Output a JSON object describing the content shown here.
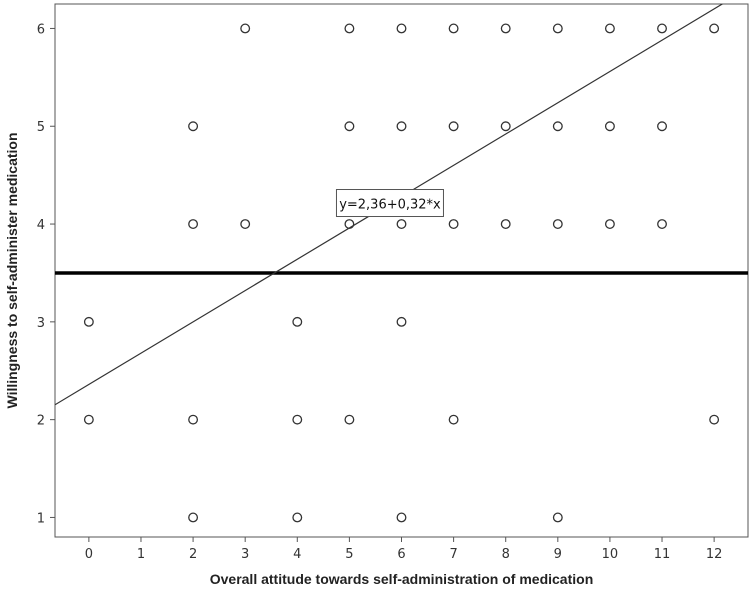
{
  "chart_data": {
    "type": "scatter",
    "title": "",
    "xlabel": "Overall attitude towards self-administration of medication",
    "ylabel": "Willingness to self-administer medication",
    "xlim": [
      -0.65,
      12.65
    ],
    "ylim": [
      0.8,
      6.25
    ],
    "xticks": [
      "0",
      "1",
      "2",
      "3",
      "4",
      "5",
      "6",
      "7",
      "8",
      "9",
      "10",
      "11",
      "12"
    ],
    "yticks": [
      "1",
      "2",
      "3",
      "4",
      "5",
      "6"
    ],
    "grid": false,
    "points": [
      {
        "x": 0,
        "y": 2
      },
      {
        "x": 0,
        "y": 3
      },
      {
        "x": 2,
        "y": 1
      },
      {
        "x": 2,
        "y": 2
      },
      {
        "x": 2,
        "y": 4
      },
      {
        "x": 2,
        "y": 5
      },
      {
        "x": 3,
        "y": 4
      },
      {
        "x": 3,
        "y": 6
      },
      {
        "x": 4,
        "y": 1
      },
      {
        "x": 4,
        "y": 2
      },
      {
        "x": 4,
        "y": 3
      },
      {
        "x": 5,
        "y": 2
      },
      {
        "x": 5,
        "y": 4
      },
      {
        "x": 5,
        "y": 5
      },
      {
        "x": 5,
        "y": 6
      },
      {
        "x": 6,
        "y": 1
      },
      {
        "x": 6,
        "y": 3
      },
      {
        "x": 6,
        "y": 4
      },
      {
        "x": 6,
        "y": 5
      },
      {
        "x": 6,
        "y": 6
      },
      {
        "x": 7,
        "y": 2
      },
      {
        "x": 7,
        "y": 4
      },
      {
        "x": 7,
        "y": 5
      },
      {
        "x": 7,
        "y": 6
      },
      {
        "x": 8,
        "y": 4
      },
      {
        "x": 8,
        "y": 5
      },
      {
        "x": 8,
        "y": 6
      },
      {
        "x": 9,
        "y": 1
      },
      {
        "x": 9,
        "y": 4
      },
      {
        "x": 9,
        "y": 5
      },
      {
        "x": 9,
        "y": 6
      },
      {
        "x": 10,
        "y": 4
      },
      {
        "x": 10,
        "y": 5
      },
      {
        "x": 10,
        "y": 6
      },
      {
        "x": 11,
        "y": 4
      },
      {
        "x": 11,
        "y": 5
      },
      {
        "x": 11,
        "y": 6
      },
      {
        "x": 12,
        "y": 2
      },
      {
        "x": 12,
        "y": 6
      }
    ],
    "regression_line": {
      "intercept": 2.36,
      "slope": 0.32,
      "label": "y=2,36+0,32*x"
    },
    "reference_line": {
      "y": 3.5
    },
    "colors": {
      "marker_stroke": "#333333",
      "line": "#333333",
      "reference": "#000000"
    }
  }
}
